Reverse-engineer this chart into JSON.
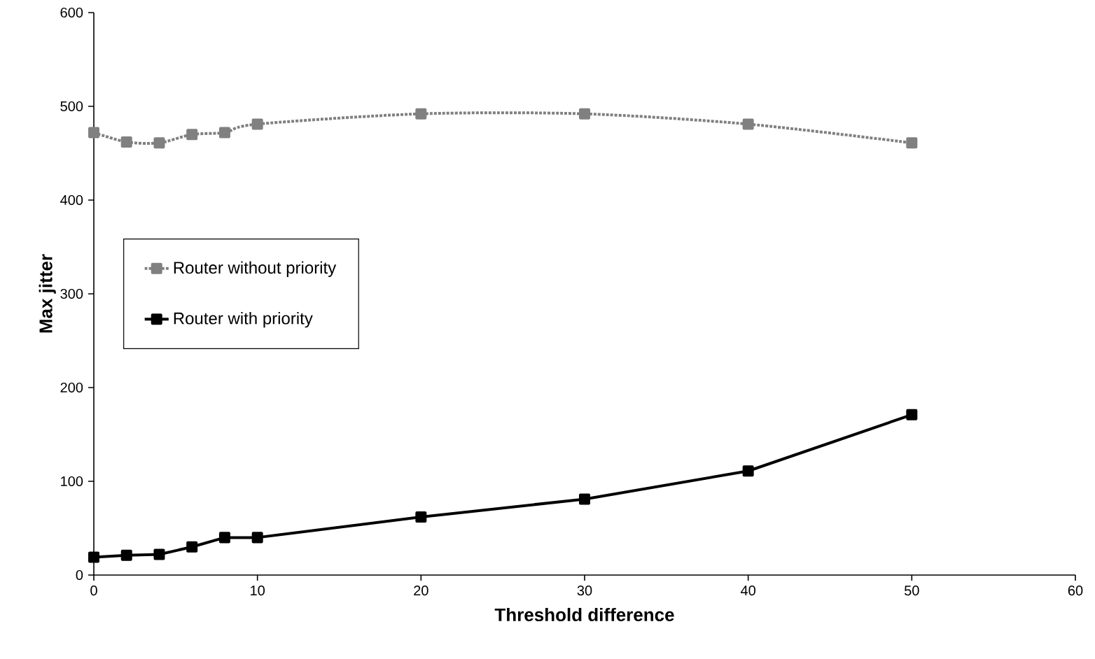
{
  "chart_data": {
    "type": "line",
    "xlabel": "Threshold difference",
    "ylabel": "Max jitter",
    "x": [
      0,
      2,
      4,
      6,
      8,
      10,
      20,
      30,
      40,
      50
    ],
    "series": [
      {
        "name": "Router without priority",
        "color": "#808080",
        "line_style": "dotted",
        "values": [
          472,
          462,
          461,
          470,
          472,
          481,
          492,
          492,
          481,
          461
        ]
      },
      {
        "name": "Router with priority",
        "color": "#000000",
        "line_style": "solid",
        "values": [
          19,
          21,
          22,
          30,
          40,
          40,
          62,
          81,
          111,
          171
        ]
      }
    ],
    "xlim": [
      0,
      60
    ],
    "xticks": [
      0,
      10,
      20,
      30,
      40,
      50,
      60
    ],
    "ylim": [
      0,
      600
    ],
    "yticks": [
      0,
      100,
      200,
      300,
      400,
      500,
      600
    ],
    "marker": "square",
    "grid": false,
    "legend": "left"
  }
}
